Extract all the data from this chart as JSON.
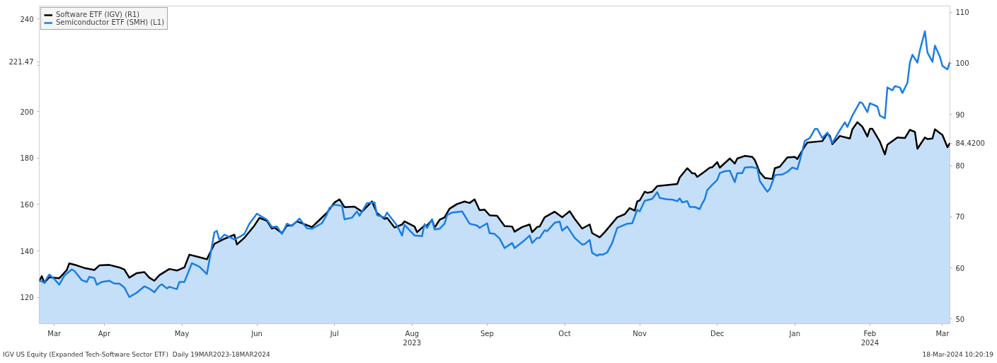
{
  "chart_data": {
    "type": "line",
    "xlim": [
      "2023-03-20",
      "2024-03-18"
    ],
    "xticks": [
      {
        "value": "2023-03-26",
        "label": "Mar"
      },
      {
        "value": "2023-04-15",
        "label": "Apr"
      },
      {
        "value": "2023-05-16",
        "label": "May"
      },
      {
        "value": "2023-06-15",
        "label": "Jun"
      },
      {
        "value": "2023-07-16",
        "label": "Jul"
      },
      {
        "value": "2023-08-16",
        "label": "Aug\n2023"
      },
      {
        "value": "2023-09-15",
        "label": "Sep"
      },
      {
        "value": "2023-10-16",
        "label": "Oct"
      },
      {
        "value": "2023-11-15",
        "label": "Nov"
      },
      {
        "value": "2023-12-16",
        "label": "Dec"
      },
      {
        "value": "2024-01-16",
        "label": "Jan"
      },
      {
        "value": "2024-02-15",
        "label": "Feb\n2024"
      },
      {
        "value": "2024-03-15",
        "label": "Mar"
      }
    ],
    "ylim": [
      108.6,
      245.5
    ],
    "yticks": [
      120,
      140,
      160,
      180,
      200,
      {
        "value": 220,
        "label": null
      },
      {
        "value": 221.47,
        "label": "221.47"
      },
      240
    ],
    "y2lim": [
      49.1,
      111.2
    ],
    "y2ticks": [
      50,
      60,
      70,
      80,
      {
        "value": 84.42,
        "label": "84.4200"
      },
      90,
      100,
      110
    ],
    "legend": "top left",
    "line_style": "solid",
    "annotations": [
      "IGV US Equity (Expanded Tech-Software Sector ETF)  Daily 19MAR2023-18MAR2024",
      "18-Mar-2024 10:20:19"
    ],
    "series": [
      {
        "name": "Software ETF (IGV) (R1)",
        "type": "area",
        "axis": "y2",
        "color": "#000000",
        "x": [
          "2023-03-20",
          "2023-03-21",
          "2023-03-22",
          "2023-03-24",
          "2023-03-28",
          "2023-03-31",
          "2023-04-01",
          "2023-04-04",
          "2023-04-07",
          "2023-04-11",
          "2023-04-13",
          "2023-04-17",
          "2023-04-21",
          "2023-04-23",
          "2023-04-25",
          "2023-04-28",
          "2023-05-01",
          "2023-05-03",
          "2023-05-05",
          "2023-05-07",
          "2023-05-11",
          "2023-05-14",
          "2023-05-17",
          "2023-05-19",
          "2023-05-23",
          "2023-05-26",
          "2023-05-29",
          "2023-06-02",
          "2023-06-06",
          "2023-06-07",
          "2023-06-10",
          "2023-06-14",
          "2023-06-16",
          "2023-06-19",
          "2023-06-21",
          "2023-06-22",
          "2023-06-25",
          "2023-06-27",
          "2023-06-29",
          "2023-07-01",
          "2023-07-07",
          "2023-07-10",
          "2023-07-13",
          "2023-07-16",
          "2023-07-18",
          "2023-07-20",
          "2023-07-24",
          "2023-07-27",
          "2023-07-31",
          "2023-08-02",
          "2023-08-05",
          "2023-08-06",
          "2023-08-09",
          "2023-08-12",
          "2023-08-13",
          "2023-08-17",
          "2023-08-18",
          "2023-08-21",
          "2023-08-22",
          "2023-08-24",
          "2023-08-25",
          "2023-08-27",
          "2023-08-29",
          "2023-08-31",
          "2023-09-03",
          "2023-09-06",
          "2023-09-08",
          "2023-09-10",
          "2023-09-12",
          "2023-09-14",
          "2023-09-16",
          "2023-09-19",
          "2023-09-22",
          "2023-09-25",
          "2023-09-26",
          "2023-09-29",
          "2023-10-02",
          "2023-10-03",
          "2023-10-05",
          "2023-10-06",
          "2023-10-08",
          "2023-10-12",
          "2023-10-15",
          "2023-10-18",
          "2023-10-20",
          "2023-10-23",
          "2023-10-26",
          "2023-10-27",
          "2023-10-30",
          "2023-11-01",
          "2023-11-06",
          "2023-11-09",
          "2023-11-11",
          "2023-11-13",
          "2023-11-14",
          "2023-11-15",
          "2023-11-17",
          "2023-11-18",
          "2023-11-20",
          "2023-11-22",
          "2023-11-28",
          "2023-11-30",
          "2023-12-01",
          "2023-12-04",
          "2023-12-06",
          "2023-12-07",
          "2023-12-08",
          "2023-12-10",
          "2023-12-13",
          "2023-12-14",
          "2023-12-16",
          "2023-12-17",
          "2023-12-21",
          "2023-12-23",
          "2023-12-24",
          "2023-12-27",
          "2023-12-30",
          "2023-12-31",
          "2024-01-02",
          "2024-01-04",
          "2024-01-07",
          "2024-01-08",
          "2024-01-10",
          "2024-01-13",
          "2024-01-16",
          "2024-01-17",
          "2024-01-20",
          "2024-01-21",
          "2024-01-27",
          "2024-01-29",
          "2024-01-30",
          "2024-01-31",
          "2024-02-03",
          "2024-02-07",
          "2024-02-08",
          "2024-02-10",
          "2024-02-12",
          "2024-02-14",
          "2024-02-15",
          "2024-02-16",
          "2024-02-19",
          "2024-02-21",
          "2024-02-22",
          "2024-02-26",
          "2024-02-29",
          "2024-03-02",
          "2024-03-04",
          "2024-03-05",
          "2024-03-08",
          "2024-03-09",
          "2024-03-11",
          "2024-03-12",
          "2024-03-15",
          "2024-03-17",
          "2024-03-18"
        ],
        "values": [
          57.4,
          58.4,
          57.1,
          58.2,
          58.0,
          59.6,
          60.9,
          60.5,
          60.0,
          59.6,
          60.5,
          60.6,
          60.1,
          59.7,
          58.1,
          59.0,
          59.2,
          58.1,
          57.5,
          58.6,
          59.8,
          59.5,
          60.1,
          62.6,
          62.1,
          61.7,
          64.7,
          65.7,
          66.5,
          64.6,
          65.9,
          68.3,
          69.8,
          69.2,
          67.7,
          67.9,
          66.8,
          68.3,
          68.3,
          69.1,
          68.0,
          69.4,
          70.8,
          72.8,
          73.4,
          71.9,
          72.0,
          71.0,
          73.0,
          70.7,
          69.6,
          69.8,
          67.9,
          68.5,
          69.1,
          68.1,
          67.0,
          68.3,
          68.3,
          69.4,
          67.9,
          69.4,
          69.9,
          71.6,
          72.5,
          73.0,
          72.7,
          73.4,
          71.3,
          71.4,
          70.3,
          70.2,
          68.2,
          68.1,
          67.1,
          68.0,
          68.5,
          67.0,
          68.0,
          68.1,
          69.9,
          71.0,
          69.9,
          71.1,
          69.6,
          67.7,
          68.5,
          66.8,
          66.0,
          67.0,
          69.9,
          70.5,
          71.7,
          71.2,
          73.0,
          73.2,
          74.9,
          74.7,
          74.9,
          76.0,
          76.3,
          76.4,
          77.7,
          79.5,
          78.5,
          78.5,
          77.8,
          78.5,
          79.6,
          79.7,
          80.7,
          79.6,
          81.4,
          80.4,
          81.4,
          81.9,
          81.7,
          81.1,
          78.7,
          77.6,
          77.4,
          79.5,
          79.8,
          81.6,
          81.7,
          81.3,
          83.8,
          84.5,
          84.8,
          86.3,
          85.8,
          84.2,
          85.8,
          85.3,
          87.1,
          88.5,
          87.6,
          85.7,
          87.2,
          87.2,
          84.7,
          82.2,
          84.1,
          85.5,
          85.4,
          87.0,
          86.6,
          83.3,
          85.5,
          85.2,
          85.3,
          87.1,
          86.0,
          83.6,
          84.42
        ]
      },
      {
        "name": "Semiconductor ETF (SMH) (L1)",
        "axis": "y",
        "color": "#1a7ee6",
        "x": [
          "2023-03-20",
          "2023-03-22",
          "2023-03-24",
          "2023-03-26",
          "2023-03-28",
          "2023-03-30",
          "2023-04-02",
          "2023-04-03",
          "2023-04-06",
          "2023-04-08",
          "2023-04-09",
          "2023-04-11",
          "2023-04-12",
          "2023-04-14",
          "2023-04-17",
          "2023-04-19",
          "2023-04-21",
          "2023-04-23",
          "2023-04-25",
          "2023-04-28",
          "2023-05-01",
          "2023-05-03",
          "2023-05-05",
          "2023-05-07",
          "2023-05-08",
          "2023-05-10",
          "2023-05-11",
          "2023-05-14",
          "2023-05-15",
          "2023-05-17",
          "2023-05-20",
          "2023-05-23",
          "2023-05-26",
          "2023-05-29",
          "2023-05-30",
          "2023-05-31",
          "2023-06-02",
          "2023-06-06",
          "2023-06-08",
          "2023-06-10",
          "2023-06-12",
          "2023-06-15",
          "2023-06-19",
          "2023-06-21",
          "2023-06-23",
          "2023-06-25",
          "2023-06-27",
          "2023-06-29",
          "2023-07-02",
          "2023-07-05",
          "2023-07-07",
          "2023-07-11",
          "2023-07-13",
          "2023-07-14",
          "2023-07-16",
          "2023-07-19",
          "2023-07-20",
          "2023-07-23",
          "2023-07-25",
          "2023-07-26",
          "2023-07-29",
          "2023-08-01",
          "2023-08-02",
          "2023-08-05",
          "2023-08-06",
          "2023-08-10",
          "2023-08-12",
          "2023-08-13",
          "2023-08-17",
          "2023-08-20",
          "2023-08-21",
          "2023-08-22",
          "2023-08-24",
          "2023-08-25",
          "2023-08-27",
          "2023-08-29",
          "2023-08-30",
          "2023-09-01",
          "2023-09-05",
          "2023-09-08",
          "2023-09-11",
          "2023-09-12",
          "2023-09-15",
          "2023-09-16",
          "2023-09-18",
          "2023-09-20",
          "2023-09-22",
          "2023-09-25",
          "2023-09-26",
          "2023-09-30",
          "2023-10-02",
          "2023-10-03",
          "2023-10-05",
          "2023-10-06",
          "2023-10-08",
          "2023-10-09",
          "2023-10-12",
          "2023-10-14",
          "2023-10-15",
          "2023-10-17",
          "2023-10-20",
          "2023-10-23",
          "2023-10-24",
          "2023-10-26",
          "2023-10-27",
          "2023-10-29",
          "2023-10-30",
          "2023-10-31",
          "2023-11-02",
          "2023-11-04",
          "2023-11-06",
          "2023-11-10",
          "2023-11-12",
          "2023-11-14",
          "2023-11-15",
          "2023-11-17",
          "2023-11-20",
          "2023-11-22",
          "2023-11-23",
          "2023-11-26",
          "2023-11-28",
          "2023-11-30",
          "2023-12-01",
          "2023-12-02",
          "2023-12-04",
          "2023-12-05",
          "2023-12-07",
          "2023-12-09",
          "2023-12-10",
          "2023-12-11",
          "2023-12-12",
          "2023-12-14",
          "2023-12-16",
          "2023-12-17",
          "2023-12-19",
          "2023-12-21",
          "2023-12-23",
          "2023-12-24",
          "2023-12-26",
          "2023-12-27",
          "2023-12-30",
          "2024-01-01",
          "2024-01-02",
          "2024-01-04",
          "2024-01-05",
          "2024-01-06",
          "2024-01-07",
          "2024-01-08",
          "2024-01-11",
          "2024-01-13",
          "2024-01-15",
          "2024-01-17",
          "2024-01-18",
          "2024-01-20",
          "2024-01-22",
          "2024-01-24",
          "2024-01-25",
          "2024-01-27",
          "2024-01-29",
          "2024-01-31",
          "2024-02-03",
          "2024-02-05",
          "2024-02-06",
          "2024-02-08",
          "2024-02-11",
          "2024-02-12",
          "2024-02-14",
          "2024-02-15",
          "2024-02-18",
          "2024-02-19",
          "2024-02-21",
          "2024-02-22",
          "2024-02-24",
          "2024-02-25",
          "2024-02-27",
          "2024-02-28",
          "2024-03-01",
          "2024-03-02",
          "2024-03-03",
          "2024-03-05",
          "2024-03-06",
          "2024-03-08",
          "2024-03-09",
          "2024-03-11",
          "2024-03-12",
          "2024-03-14",
          "2024-03-15",
          "2024-03-17",
          "2024-03-18"
        ],
        "values": [
          127.2,
          126.4,
          129.8,
          127.9,
          125.4,
          129.3,
          132.0,
          131.4,
          127.4,
          126.6,
          128.8,
          128.3,
          125.4,
          126.6,
          127.1,
          125.9,
          125.9,
          124.2,
          120.1,
          122.0,
          124.7,
          123.7,
          122.2,
          124.9,
          125.6,
          123.8,
          124.5,
          123.5,
          126.6,
          126.6,
          134.7,
          133.2,
          130.0,
          148.0,
          148.6,
          144.7,
          147.0,
          144.9,
          146.0,
          147.3,
          151.7,
          156.0,
          153.4,
          150.2,
          150.5,
          147.3,
          151.7,
          150.7,
          153.9,
          149.7,
          149.5,
          151.9,
          155.7,
          158.5,
          159.9,
          159.4,
          153.6,
          154.3,
          157.0,
          155.1,
          160.6,
          160.9,
          155.4,
          154.4,
          156.5,
          150.9,
          146.6,
          151.2,
          146.6,
          146.3,
          151.5,
          149.9,
          153.6,
          149.2,
          149.5,
          151.7,
          155.4,
          156.5,
          157.0,
          151.7,
          150.9,
          149.9,
          151.9,
          147.6,
          147.3,
          145.3,
          141.2,
          143.4,
          141.2,
          144.6,
          146.6,
          143.4,
          145.6,
          145.6,
          148.9,
          148.5,
          152.1,
          152.6,
          148.7,
          150.5,
          145.6,
          142.7,
          142.9,
          144.7,
          139.1,
          137.9,
          138.5,
          138.3,
          139.3,
          143.4,
          149.9,
          151.7,
          151.9,
          157.7,
          157.0,
          161.6,
          162.4,
          165.3,
          162.8,
          162.2,
          162.1,
          161.4,
          162.6,
          160.9,
          161.4,
          158.9,
          158.9,
          158.0,
          160.4,
          162.3,
          166.2,
          168.5,
          170.6,
          173.5,
          174.3,
          174.5,
          169.6,
          173.5,
          173.5,
          175.9,
          176.1,
          175.5,
          170.1,
          167.0,
          165.5,
          166.7,
          169.6,
          172.6,
          172.9,
          174.0,
          175.9,
          175.2,
          178.9,
          187.4,
          188.6,
          192.5,
          192.5,
          188.6,
          191.0,
          186.5,
          192.0,
          195.4,
          193.4,
          198.3,
          204.1,
          203.6,
          199.8,
          203.6,
          202.2,
          198.3,
          197.1,
          210.4,
          209.2,
          211.0,
          210.4,
          208.0,
          212.4,
          221.1,
          224.5,
          221.1,
          226.5,
          234.6,
          225.5,
          221.4,
          228.4,
          223.6,
          219.7,
          218.2,
          221.47
        ]
      }
    ]
  }
}
